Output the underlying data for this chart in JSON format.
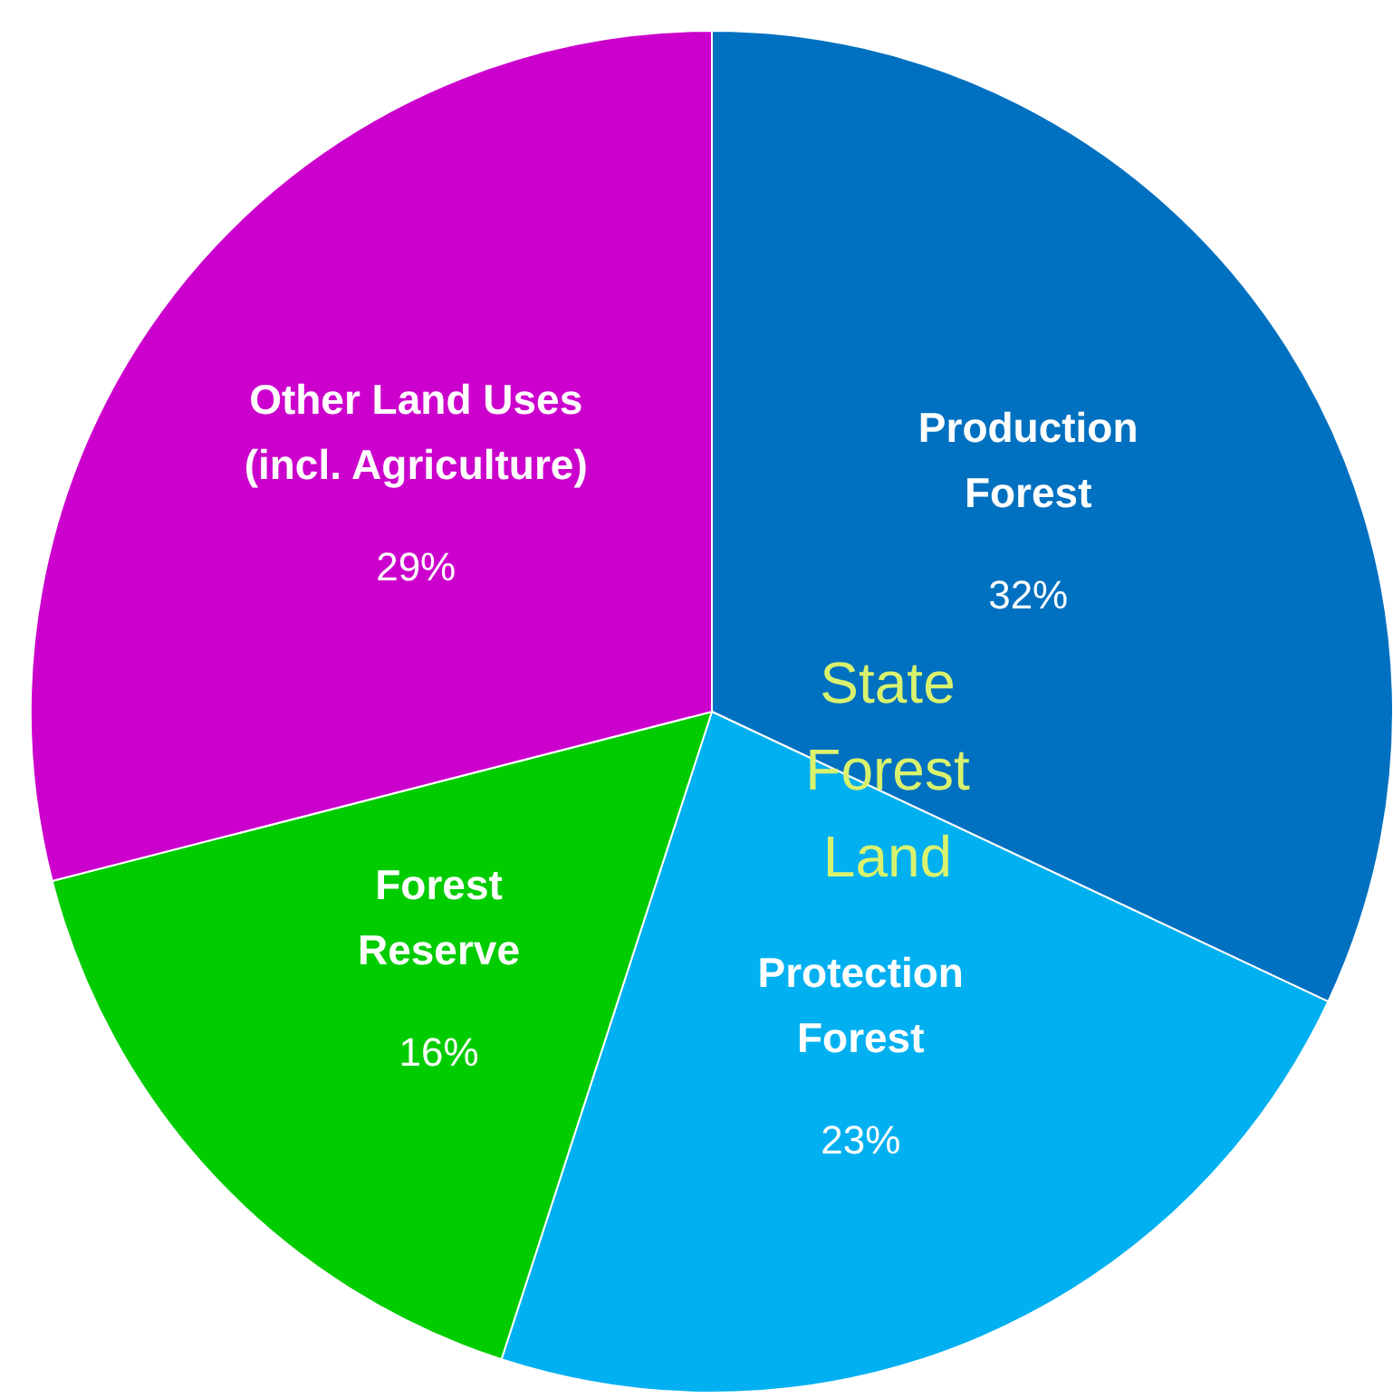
{
  "chart_data": {
    "type": "pie",
    "categories": [
      "Production Forest",
      "Protection Forest",
      "Forest Reserve",
      "Other Land Uses (incl. Agriculture)"
    ],
    "values": [
      32,
      23,
      16,
      29
    ],
    "value_labels": [
      "32%",
      "23%",
      "16%",
      "29%"
    ],
    "colors": [
      "#0070c0",
      "#00b0f0",
      "#00cc00",
      "#cc00cc"
    ],
    "annotations": [
      "State Forest Land"
    ]
  }
}
